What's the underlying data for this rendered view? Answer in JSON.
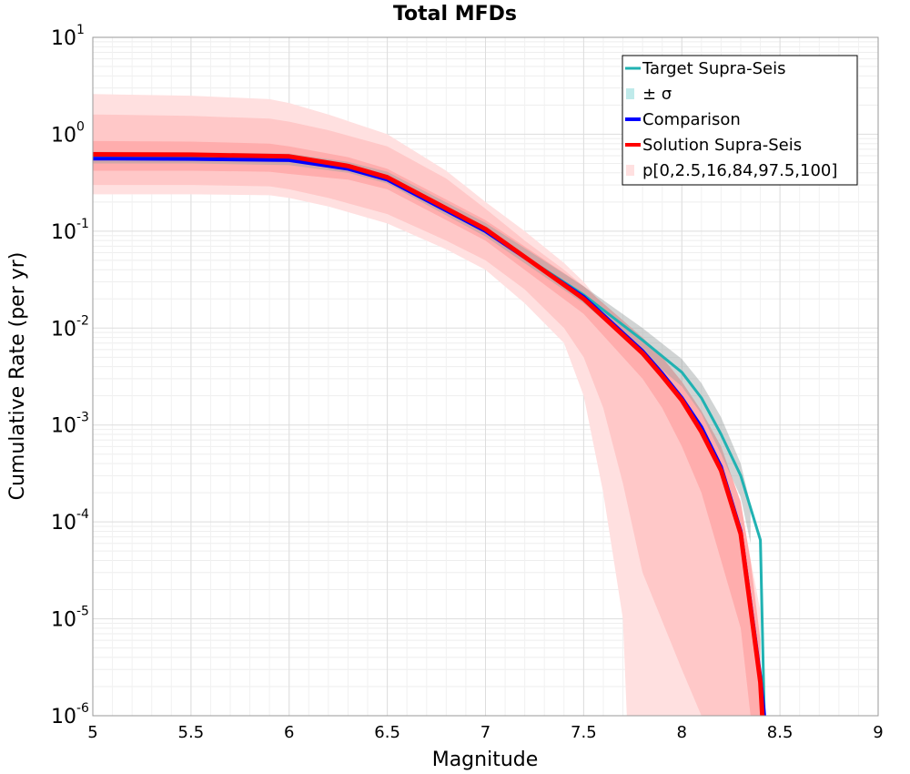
{
  "chart_data": {
    "type": "line",
    "title": "Total MFDs",
    "xlabel": "Magnitude",
    "ylabel": "Cumulative Rate (per yr)",
    "xlim": [
      5,
      9
    ],
    "ylim": [
      1e-06,
      10
    ],
    "yscale": "log",
    "grid": true,
    "legend_position": "top-right",
    "x_ticks": [
      "5",
      "5.5",
      "6",
      "6.5",
      "7",
      "7.5",
      "8",
      "8.5",
      "9"
    ],
    "y_ticks": [
      {
        "base": "10",
        "exp": "1"
      },
      {
        "base": "10",
        "exp": "0"
      },
      {
        "base": "10",
        "exp": "-1"
      },
      {
        "base": "10",
        "exp": "-2"
      },
      {
        "base": "10",
        "exp": "-3"
      },
      {
        "base": "10",
        "exp": "-4"
      },
      {
        "base": "10",
        "exp": "-5"
      },
      {
        "base": "10",
        "exp": "-6"
      }
    ],
    "colors": {
      "target": "#20b2b2",
      "sigma": "#bfeaea",
      "comparison": "#0000ff",
      "solution": "#ff0000",
      "band_outer": "#ffe0e0",
      "band_mid": "#ffc8c8",
      "band_inner": "#ffadad",
      "sigma_band": "#9aa0a0"
    },
    "series": [
      {
        "name": "Target Supra-Seis",
        "x": [
          5.0,
          5.5,
          6.0,
          6.3,
          6.5,
          7.0,
          7.5,
          7.8,
          8.0,
          8.1,
          8.2,
          8.3,
          8.4,
          8.42
        ],
        "y": [
          0.58,
          0.575,
          0.55,
          0.45,
          0.35,
          0.1,
          0.022,
          0.0075,
          0.0035,
          0.0019,
          0.0008,
          0.0003,
          6.5e-05,
          1e-06
        ]
      },
      {
        "name": "Comparison",
        "x": [
          5.0,
          5.5,
          6.0,
          6.3,
          6.5,
          7.0,
          7.5,
          7.8,
          7.9,
          8.0,
          8.1,
          8.2,
          8.3,
          8.4,
          8.42
        ],
        "y": [
          0.56,
          0.555,
          0.54,
          0.44,
          0.34,
          0.1,
          0.021,
          0.0058,
          0.0034,
          0.0019,
          0.00095,
          0.00037,
          8e-05,
          2.5e-06,
          1e-06
        ]
      },
      {
        "name": "Solution Supra-Seis",
        "x": [
          5.0,
          5.5,
          6.0,
          6.3,
          6.5,
          7.0,
          7.5,
          7.8,
          7.9,
          8.0,
          8.1,
          8.2,
          8.3,
          8.4,
          8.41
        ],
        "y": [
          0.62,
          0.615,
          0.59,
          0.47,
          0.36,
          0.105,
          0.02,
          0.0055,
          0.0032,
          0.0018,
          0.00085,
          0.00034,
          7.5e-05,
          2.2e-06,
          1e-06
        ]
      }
    ],
    "bands": [
      {
        "name": "p[0,2.5,16,84,97.5,100]",
        "level": "p0-p100",
        "x": [
          5.0,
          5.5,
          5.9,
          6.0,
          6.2,
          6.5,
          6.8,
          7.0,
          7.2,
          7.4,
          7.5,
          7.6,
          7.7,
          7.72,
          7.8,
          8.0,
          8.1,
          8.2,
          8.3,
          8.4
        ],
        "upper": [
          2.6,
          2.5,
          2.3,
          2.1,
          1.6,
          1.0,
          0.42,
          0.2,
          0.1,
          0.047,
          0.03,
          0.017,
          0.008,
          0.0075,
          0.0045,
          0.0019,
          0.0009,
          0.0004,
          0.00014,
          1.2e-05
        ],
        "lower": [
          0.24,
          0.24,
          0.235,
          0.22,
          0.18,
          0.12,
          0.065,
          0.04,
          0.018,
          0.007,
          0.002,
          0.0002,
          1e-05,
          1e-06,
          1e-06,
          1e-06,
          1e-06,
          1e-06,
          1e-06,
          1e-06
        ]
      },
      {
        "name": "p[0,2.5,16,84,97.5,100]",
        "level": "p2.5-p97.5",
        "x": [
          5.0,
          5.5,
          5.9,
          6.0,
          6.2,
          6.5,
          6.8,
          7.0,
          7.2,
          7.4,
          7.5,
          7.6,
          7.7,
          7.8,
          8.0,
          8.1,
          8.2,
          8.3,
          8.35
        ],
        "upper": [
          1.6,
          1.55,
          1.45,
          1.35,
          1.1,
          0.75,
          0.35,
          0.17,
          0.08,
          0.04,
          0.027,
          0.016,
          0.0085,
          0.0048,
          0.0017,
          0.0008,
          0.00033,
          9e-05,
          1e-05
        ],
        "lower": [
          0.3,
          0.3,
          0.29,
          0.27,
          0.22,
          0.15,
          0.08,
          0.05,
          0.025,
          0.01,
          0.005,
          0.0015,
          0.00025,
          3e-05,
          3e-06,
          1e-06,
          1e-06,
          1e-06,
          1e-06
        ]
      },
      {
        "name": "p[0,2.5,16,84,97.5,100]",
        "level": "p16-p84",
        "x": [
          5.0,
          5.5,
          5.9,
          6.0,
          6.3,
          6.5,
          7.0,
          7.5,
          7.8,
          7.9,
          8.0,
          8.1,
          8.2,
          8.3,
          8.35,
          8.4
        ],
        "upper": [
          0.85,
          0.84,
          0.8,
          0.75,
          0.58,
          0.44,
          0.13,
          0.027,
          0.008,
          0.005,
          0.0028,
          0.0014,
          0.0006,
          0.00016,
          4e-05,
          6e-06
        ],
        "lower": [
          0.42,
          0.42,
          0.41,
          0.39,
          0.34,
          0.27,
          0.08,
          0.014,
          0.003,
          0.0015,
          0.0006,
          0.0002,
          4e-05,
          8e-06,
          1e-06,
          1e-06
        ]
      },
      {
        "name": "± σ",
        "level": "sigma",
        "x": [
          5.0,
          5.5,
          6.0,
          6.3,
          6.5,
          7.0,
          7.5,
          7.8,
          8.0,
          8.1,
          8.2,
          8.3,
          8.35
        ],
        "upper": [
          0.66,
          0.65,
          0.63,
          0.52,
          0.41,
          0.122,
          0.027,
          0.01,
          0.0048,
          0.0027,
          0.0012,
          0.0004,
          0.00015
        ],
        "lower": [
          0.5,
          0.5,
          0.48,
          0.4,
          0.31,
          0.088,
          0.018,
          0.0055,
          0.0025,
          0.0013,
          0.0005,
          0.00018,
          6e-05
        ]
      }
    ],
    "legend": [
      {
        "label": "Target Supra-Seis",
        "style": "line",
        "color_key": "target"
      },
      {
        "label": "± σ",
        "style": "patch",
        "color_key": "sigma"
      },
      {
        "label": "Comparison",
        "style": "line",
        "color_key": "comparison"
      },
      {
        "label": "Solution Supra-Seis",
        "style": "line",
        "color_key": "solution"
      },
      {
        "label": "p[0,2.5,16,84,97.5,100]",
        "style": "patch",
        "color_key": "band_outer"
      }
    ]
  }
}
